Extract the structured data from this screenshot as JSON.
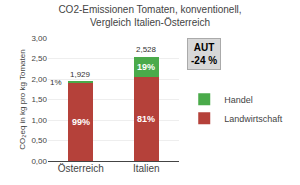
{
  "chart_data": {
    "type": "bar",
    "stacked": true,
    "title": "CO2-Emissionen Tomaten, konventionell,\nVergleich Italien-Österreich",
    "ylabel": "CO₂eq in kg pro kg Tomaten",
    "categories": [
      "Österreich",
      "Italien"
    ],
    "series": [
      {
        "name": "Landwirtschaft",
        "color": "#b5413a",
        "values": [
          1.91,
          2.048
        ],
        "share_labels": [
          "99%",
          "81%"
        ]
      },
      {
        "name": "Handel",
        "color": "#4aaa4a",
        "values": [
          0.019,
          0.48
        ],
        "share_labels": [
          "1%",
          "19%"
        ]
      }
    ],
    "totals": [
      1.929,
      2.528
    ],
    "total_labels": [
      "1,929",
      "2,528"
    ],
    "ylim": [
      0,
      3.0
    ],
    "yticks": [
      {
        "value": 0.0,
        "label": "0,00"
      },
      {
        "value": 0.5,
        "label": "0,50"
      },
      {
        "value": 1.0,
        "label": "1,00"
      },
      {
        "value": 1.5,
        "label": "1,50"
      },
      {
        "value": 2.0,
        "label": "2,00"
      },
      {
        "value": 2.5,
        "label": "2,50"
      },
      {
        "value": 3.0,
        "label": "3,00"
      }
    ],
    "grid": true,
    "legend": "right",
    "annotations": [
      {
        "text": "AUT\n-24 %"
      }
    ]
  }
}
